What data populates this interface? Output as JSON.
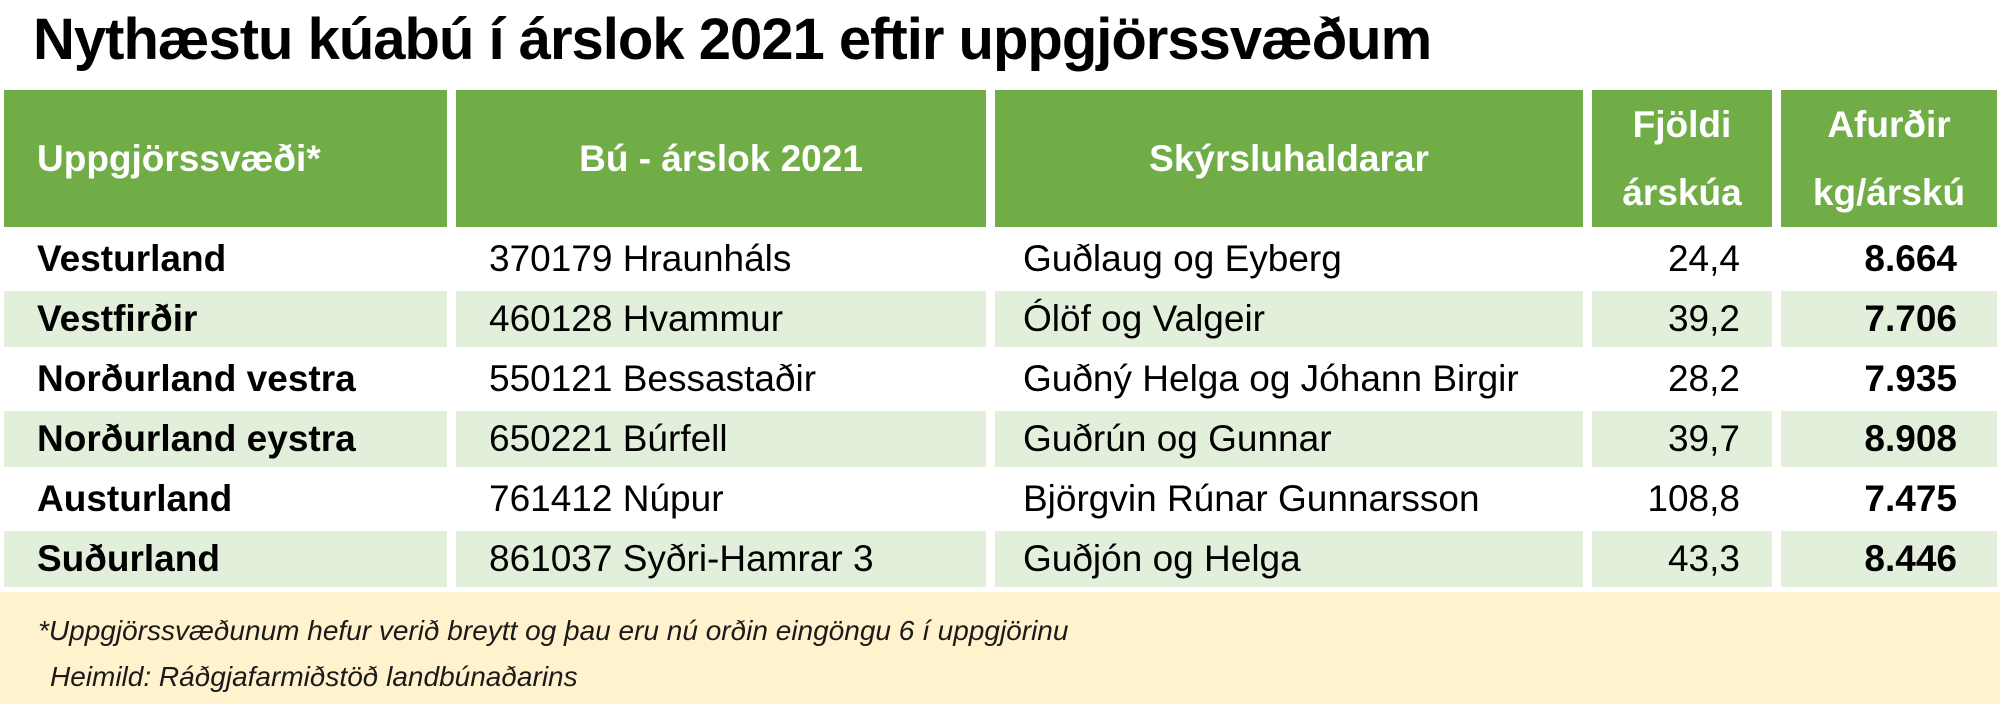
{
  "chart_data": {
    "type": "table",
    "title": "Nythæstu kúabú í árslok 2021 eftir uppgjörssvæðum",
    "columns": [
      "Uppgjörssvæði*",
      "Bú - árslok 2021",
      "Skýrsluhaldarar",
      "Fjöldi árskúa",
      "Afurðir kg/árskú"
    ],
    "rows": [
      [
        "Vesturland",
        "370179 Hraunháls",
        "Guðlaug og Eyberg",
        "24,4",
        "8.664"
      ],
      [
        "Vestfirðir",
        "460128 Hvammur",
        "Ólöf og Valgeir",
        "39,2",
        "7.706"
      ],
      [
        "Norðurland vestra",
        "550121 Bessastaðir",
        "Guðný Helga og Jóhann Birgir",
        "28,2",
        "7.935"
      ],
      [
        "Norðurland eystra",
        "650221 Búrfell",
        "Guðrún og Gunnar",
        "39,7",
        "8.908"
      ],
      [
        "Austurland",
        "761412 Núpur",
        "Björgvin Rúnar Gunnarsson",
        "108,8",
        "7.475"
      ],
      [
        "Suðurland",
        "861037 Syðri-Hamrar 3",
        "Guðjón og Helga",
        "43,3",
        "8.446"
      ]
    ],
    "footnote": "*Uppgjörssvæðunum hefur verið breytt og þau eru nú orðin eingöngu 6 í uppgjörinu",
    "source": "Heimild: Ráðgjafarmiðstöð landbúnaðarins"
  },
  "header": {
    "col1": "Uppgjörssvæði*",
    "col2": "Bú - árslok 2021",
    "col3": "Skýrsluhaldarar",
    "col4": "Fjöldi\nárskúa",
    "col5": "Afurðir\nkg/árskú"
  },
  "colors": {
    "header_green": "#70AD47",
    "row_alt_green": "#E2EFDA",
    "footer_cream": "#FFF2CC"
  }
}
